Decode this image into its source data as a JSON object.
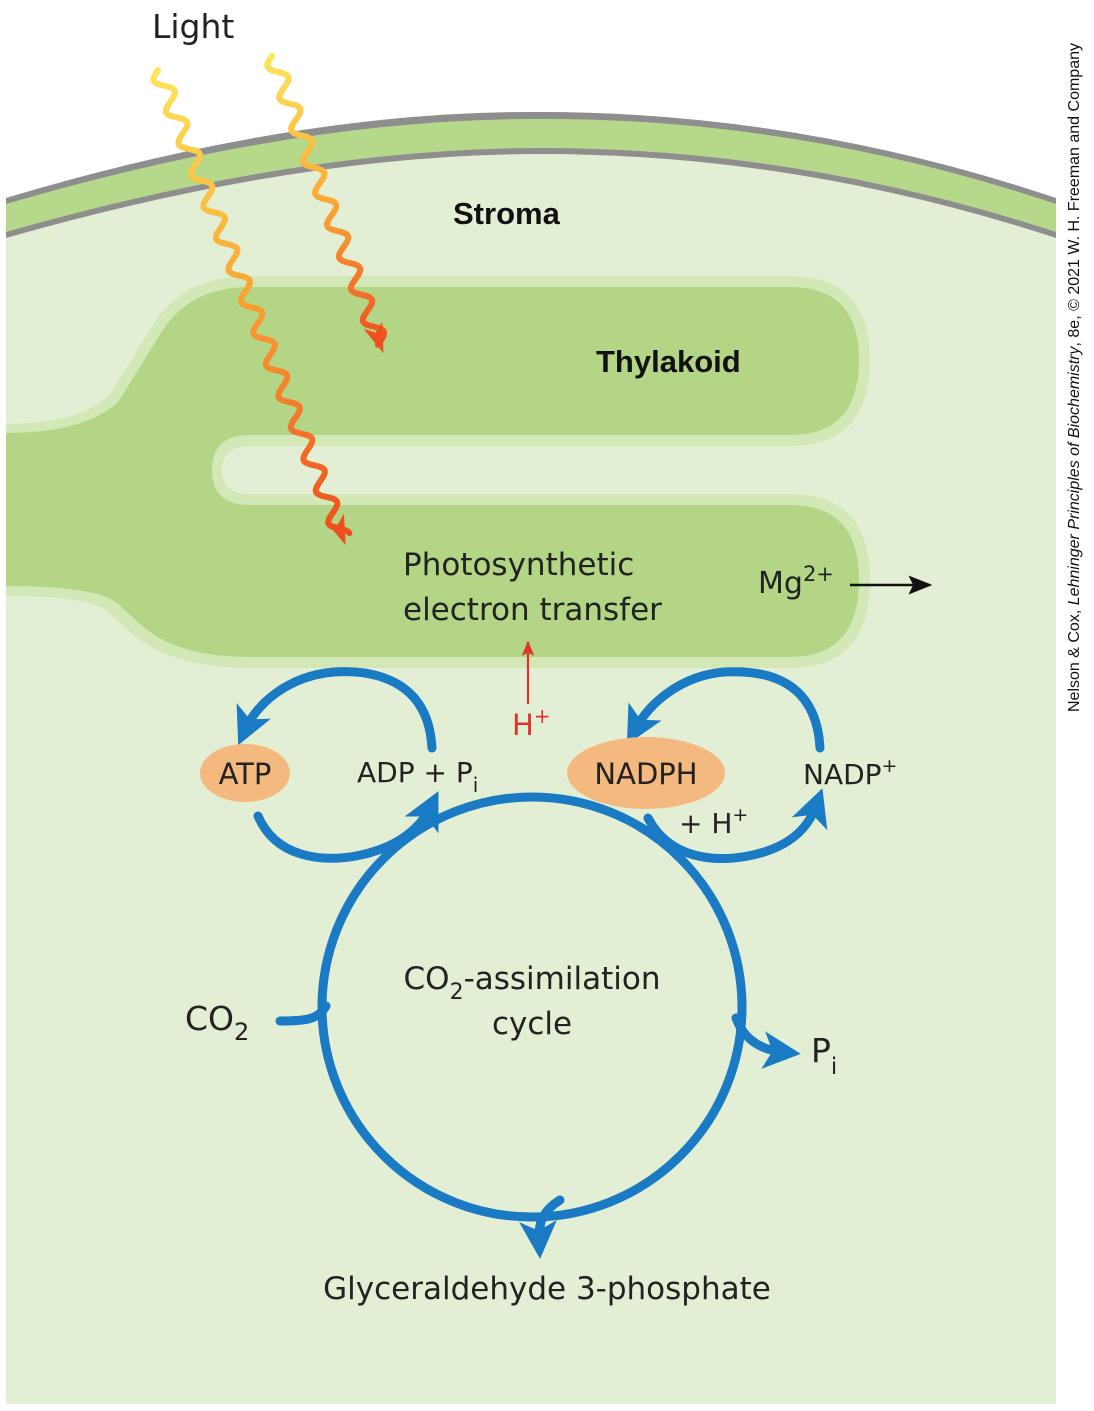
{
  "labels": {
    "light": "Light",
    "stroma": "Stroma",
    "thylakoid": "Thylakoid",
    "electron_transfer_1": "Photosynthetic",
    "electron_transfer_2": "electron transfer",
    "mg": "Mg",
    "mg_sup": "2+",
    "h_plus": "H",
    "plus_sup": "+",
    "atp": "ATP",
    "adp_pi": "ADP + P",
    "sub_i": "i",
    "nadph": "NADPH",
    "plus_h": "+ H",
    "nadp": "NADP",
    "co2": "CO",
    "sub_2": "2",
    "cycle_1a": "CO",
    "cycle_1b": "-assimilation",
    "cycle_2": "cycle",
    "pi": "P",
    "product": "Glyceraldehyde 3-phosphate"
  },
  "credit": {
    "prefix": "Nelson & Cox, ",
    "book": "Lehninger Principles of Biochemistry",
    "suffix": ", 8e, © 2021 W. H. Freeman and Company"
  },
  "colors": {
    "stroma_fill": "#e3efd5",
    "membrane_green": "#b6d88a",
    "membrane_grey": "#8e8e8e",
    "thylakoid_fill": "#b3d585",
    "thylakoid_edge": "#d3e8b6",
    "cycle_blue": "#1a7ac3",
    "molecule_badge": "#f4b97f",
    "proton_red": "#e0342a",
    "light_yellow": "#fcd24a",
    "light_orange": "#f05a22"
  }
}
